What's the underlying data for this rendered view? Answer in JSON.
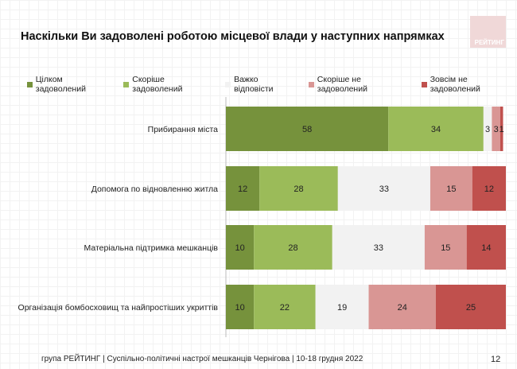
{
  "chart_data": {
    "type": "bar",
    "orientation": "horizontal-stacked",
    "title": "Наскільки Ви задоволені роботою місцевої влади у наступних напрямках",
    "categories": [
      "Прибирання міста",
      "Допомога по відновленню житла",
      "Матеріальна підтримка мешканців",
      "Організація бомбосховищ та найпростіших укриттів"
    ],
    "series": [
      {
        "name": "Цілком задоволений",
        "color": "#76923c",
        "values": [
          58,
          12,
          10,
          10
        ]
      },
      {
        "name": "Скоріше задоволений",
        "color": "#9bbb59",
        "values": [
          34,
          28,
          28,
          22
        ]
      },
      {
        "name": "Важко відповісти",
        "color": "#f2f2f2",
        "values": [
          3,
          33,
          33,
          19
        ]
      },
      {
        "name": "Скоріше не задоволений",
        "color": "#d99694",
        "values": [
          3,
          15,
          15,
          24
        ]
      },
      {
        "name": "Зовсім не задоволений",
        "color": "#c0504d",
        "values": [
          1,
          12,
          14,
          25
        ]
      }
    ],
    "xlim": [
      0,
      100
    ],
    "legend": "top",
    "grid": false
  },
  "logo_text": "РЕЙТИНГ",
  "footer": "група РЕЙТИНГ  | Суспільно-політичні настрої мешканців Чернігова | 10-18 грудня 2022",
  "page_number": "12"
}
